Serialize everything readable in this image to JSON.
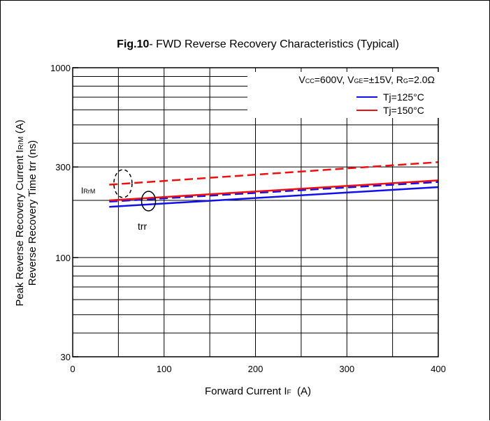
{
  "chart_data": {
    "type": "line",
    "title_prefix": "Fig.10",
    "title_text": "- FWD Reverse Recovery Characteristics (Typical)",
    "xlabel": {
      "main": "Forward Current I",
      "sub": "F",
      "unit": "  (A)"
    },
    "ylabel_line1": {
      "main": "Peak Reverse Recovery Current  I",
      "sub": "RrM",
      "unit": " (A)"
    },
    "ylabel_line2": "Reverse Recovery Time trr  (ns)",
    "xlim": [
      0,
      400
    ],
    "ylim": [
      30,
      1000
    ],
    "yscale": "log",
    "x_ticks": [
      "0",
      "100",
      "200",
      "300",
      "400"
    ],
    "y_ticks": [
      "30",
      "100",
      "300",
      "1000"
    ],
    "conditions": {
      "vcc": {
        "main": "V",
        "sub": "CC",
        "rest": "=600V, "
      },
      "vge": {
        "main": "V",
        "sub": "GE",
        "rest": "=±15V, "
      },
      "rg": {
        "main": "R",
        "sub": "G",
        "rest": "=2.0Ω"
      }
    },
    "legend": [
      {
        "label": "Tj=125°C",
        "color": "#1010ee"
      },
      {
        "label": "Tj=150°C",
        "color": "#ee1010"
      }
    ],
    "annotations": {
      "irrm": {
        "main": "I",
        "sub": "RrM"
      },
      "trr": "trr"
    },
    "series": [
      {
        "legend": "Tj=125°C",
        "quantity": "trr",
        "color": "#1010ee",
        "dash": "solid",
        "x": [
          40,
          400
        ],
        "y": [
          185,
          235
        ]
      },
      {
        "legend": "Tj=125°C",
        "quantity": "IRrM",
        "color": "#1010ee",
        "dash": "dashed",
        "x": [
          40,
          400
        ],
        "y": [
          197,
          250
        ]
      },
      {
        "legend": "Tj=150°C",
        "quantity": "trr",
        "color": "#ee1010",
        "dash": "solid",
        "x": [
          40,
          400
        ],
        "y": [
          200,
          255
        ]
      },
      {
        "legend": "Tj=150°C",
        "quantity": "IRrM",
        "color": "#ee1010",
        "dash": "dashed",
        "x": [
          40,
          400
        ],
        "y": [
          242,
          318
        ]
      }
    ]
  }
}
